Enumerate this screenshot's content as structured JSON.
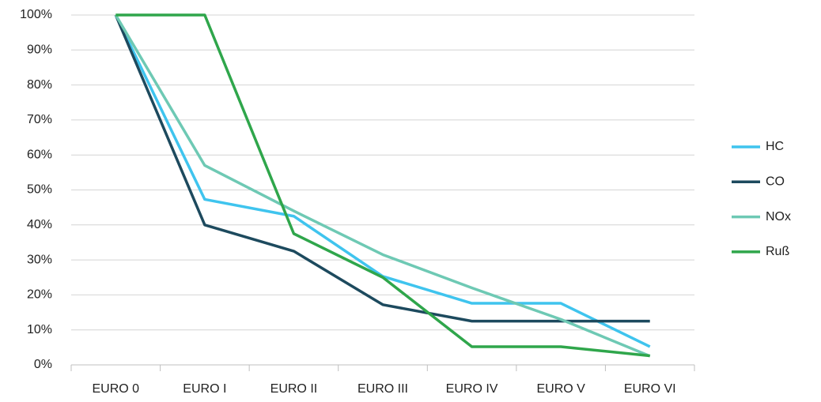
{
  "chart_data": {
    "type": "line",
    "categories": [
      "EURO 0",
      "EURO I",
      "EURO II",
      "EURO III",
      "EURO IV",
      "EURO V",
      "EURO VI"
    ],
    "series": [
      {
        "name": "HC",
        "color": "#3fc4ee",
        "values": [
          100,
          47.3,
          42.5,
          25.3,
          17.6,
          17.6,
          5.2
        ]
      },
      {
        "name": "CO",
        "color": "#1d4a5e",
        "values": [
          100,
          40,
          32.5,
          17.2,
          12.5,
          12.5,
          12.5
        ]
      },
      {
        "name": "NOx",
        "color": "#6ec9b4",
        "values": [
          100,
          57,
          44,
          31.5,
          22,
          13,
          2.5
        ]
      },
      {
        "name": "Ruß",
        "color": "#2fa64b",
        "values": [
          100,
          100,
          37.5,
          25,
          5.2,
          5.2,
          2.6
        ]
      }
    ],
    "ylim": [
      0,
      100
    ],
    "yticks": [
      {
        "value": 0,
        "label": "0%"
      },
      {
        "value": 10,
        "label": "10%"
      },
      {
        "value": 20,
        "label": "20%"
      },
      {
        "value": 30,
        "label": "30%"
      },
      {
        "value": 40,
        "label": "40%"
      },
      {
        "value": 50,
        "label": "50%"
      },
      {
        "value": 60,
        "label": "60%"
      },
      {
        "value": 70,
        "label": "70%"
      },
      {
        "value": 80,
        "label": "80%"
      },
      {
        "value": 90,
        "label": "90%"
      },
      {
        "value": 100,
        "label": "100%"
      }
    ],
    "grid": true,
    "legend": "right"
  }
}
